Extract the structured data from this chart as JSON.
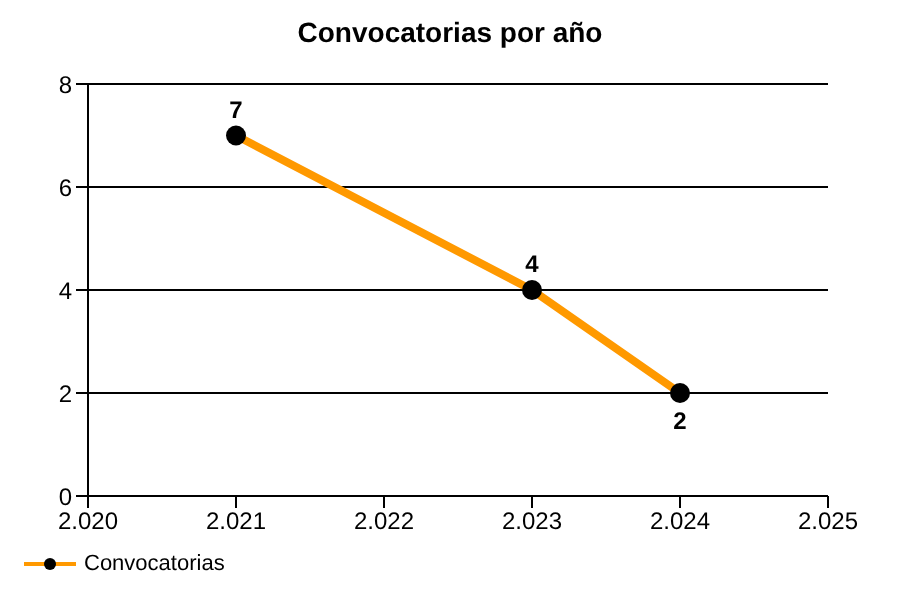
{
  "chart_data": {
    "type": "line",
    "title": "Convocatorias por año",
    "x": [
      2021,
      2023,
      2024
    ],
    "series": [
      {
        "name": "Convocatorias",
        "color": "#ff9900",
        "values": [
          7,
          4,
          2
        ]
      }
    ],
    "xlim": [
      2020,
      2025
    ],
    "xticks": [
      {
        "value": 2020,
        "label": "2.020"
      },
      {
        "value": 2021,
        "label": "2.021"
      },
      {
        "value": 2022,
        "label": "2.022"
      },
      {
        "value": 2023,
        "label": "2.023"
      },
      {
        "value": 2024,
        "label": "2.024"
      },
      {
        "value": 2025,
        "label": "2.025"
      }
    ],
    "ylim": [
      0,
      8
    ],
    "yticks": [
      0,
      2,
      4,
      6,
      8
    ],
    "grid": "y",
    "legend": "bottom left",
    "marker": "circle",
    "line_style": "solid",
    "data_labels": true
  }
}
